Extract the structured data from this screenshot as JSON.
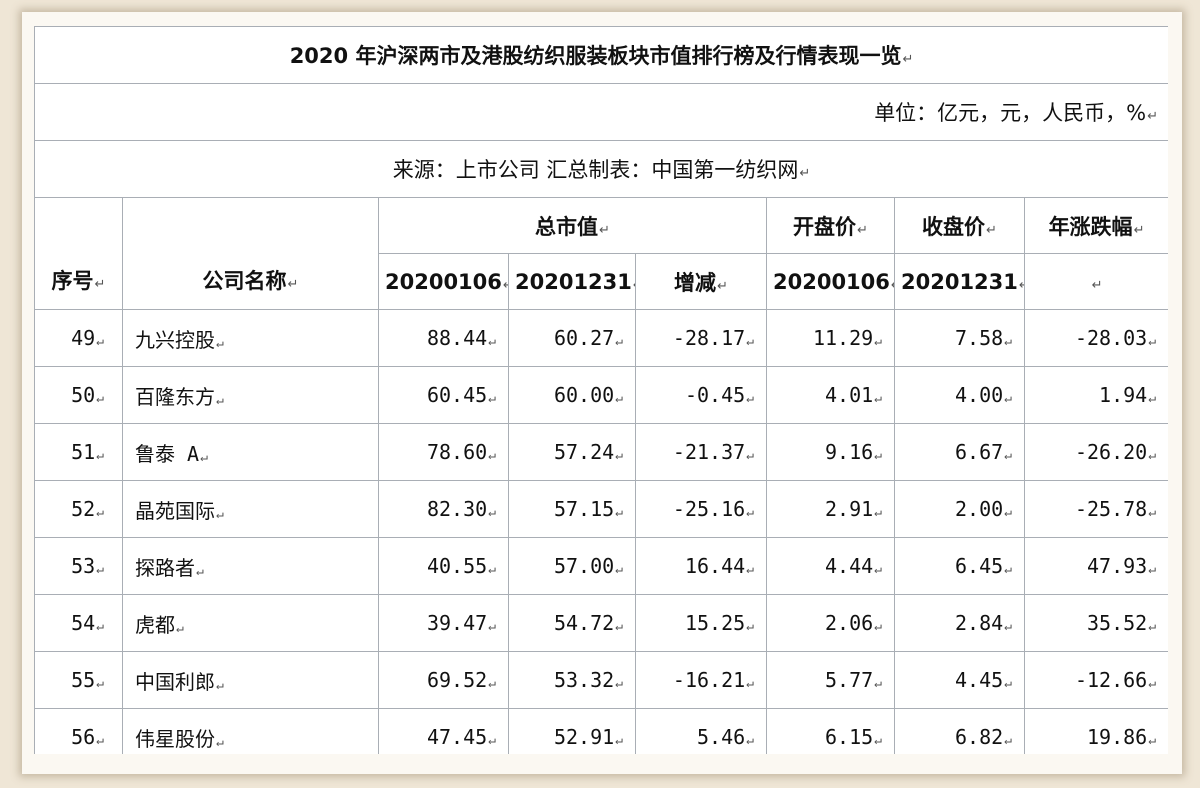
{
  "title": "2020 年沪深两市及港股纺织服装板块市值排行榜及行情表现一览",
  "unit": "单位：亿元，元，人民币，%",
  "source": "来源：上市公司  汇总制表：中国第一纺织网",
  "headers": {
    "seq": "序号",
    "name": "公司名称",
    "market_cap": "总市值",
    "open_price": "开盘价",
    "close_price": "收盘价",
    "change": "年涨跌幅",
    "date_start": "20200106",
    "date_end": "20201231",
    "diff": "增减",
    "blank": ""
  },
  "rows": [
    {
      "seq": "49",
      "name": "九兴控股",
      "cap_start": "88.44",
      "cap_end": "60.27",
      "diff": "-28.17",
      "open": "11.29",
      "close": "7.58",
      "change": "-28.03"
    },
    {
      "seq": "50",
      "name": "百隆东方",
      "cap_start": "60.45",
      "cap_end": "60.00",
      "diff": "-0.45",
      "open": "4.01",
      "close": "4.00",
      "change": "1.94"
    },
    {
      "seq": "51",
      "name": "鲁泰 A",
      "cap_start": "78.60",
      "cap_end": "57.24",
      "diff": "-21.37",
      "open": "9.16",
      "close": "6.67",
      "change": "-26.20"
    },
    {
      "seq": "52",
      "name": "晶苑国际",
      "cap_start": "82.30",
      "cap_end": "57.15",
      "diff": "-25.16",
      "open": "2.91",
      "close": "2.00",
      "change": "-25.78"
    },
    {
      "seq": "53",
      "name": "探路者",
      "cap_start": "40.55",
      "cap_end": "57.00",
      "diff": "16.44",
      "open": "4.44",
      "close": "6.45",
      "change": "47.93"
    },
    {
      "seq": "54",
      "name": "虎都",
      "cap_start": "39.47",
      "cap_end": "54.72",
      "diff": "15.25",
      "open": "2.06",
      "close": "2.84",
      "change": "35.52"
    },
    {
      "seq": "55",
      "name": "中国利郎",
      "cap_start": "69.52",
      "cap_end": "53.32",
      "diff": "-16.21",
      "open": "5.77",
      "close": "4.45",
      "change": "-12.66"
    },
    {
      "seq": "56",
      "name": "伟星股份",
      "cap_start": "47.45",
      "cap_end": "52.91",
      "diff": "5.46",
      "open": "6.15",
      "close": "6.82",
      "change": "19.86"
    }
  ]
}
